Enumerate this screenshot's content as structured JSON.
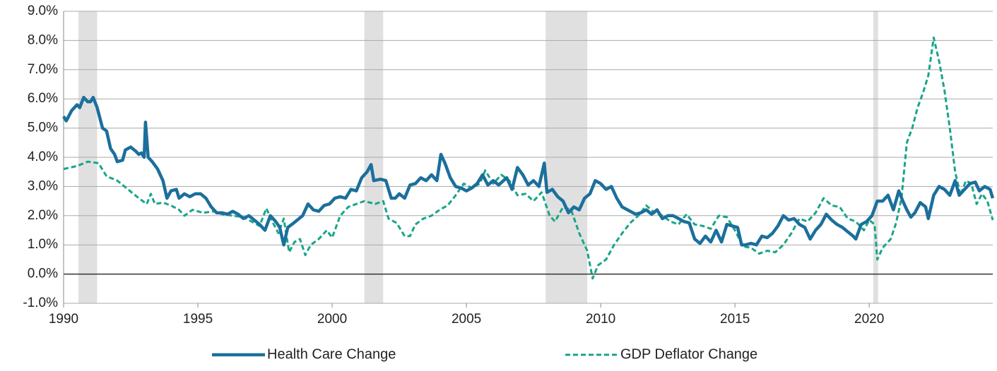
{
  "chart_data": {
    "type": "line",
    "xlim": [
      1990,
      2024.6
    ],
    "xticks": [
      1990,
      1995,
      2000,
      2005,
      2010,
      2015,
      2020
    ],
    "ylim": [
      -1,
      9
    ],
    "yticks": [
      {
        "value": 9,
        "label": "9.0%"
      },
      {
        "value": 8,
        "label": "8.0%"
      },
      {
        "value": 7,
        "label": "7.0%"
      },
      {
        "value": 6,
        "label": "6.0%"
      },
      {
        "value": 5,
        "label": "5.0%"
      },
      {
        "value": 4,
        "label": "4.0%"
      },
      {
        "value": 3,
        "label": "3.0%"
      },
      {
        "value": 2,
        "label": "2.0%"
      },
      {
        "value": 1,
        "label": "1.0%"
      },
      {
        "value": 0,
        "label": "0.0%"
      },
      {
        "value": -1,
        "label": "-1.0%"
      }
    ],
    "grid": true,
    "recession_bands": [
      [
        1990.55,
        1991.25
      ],
      [
        2001.2,
        2001.9
      ],
      [
        2007.95,
        2009.5
      ],
      [
        2020.15,
        2020.33
      ]
    ],
    "series": [
      {
        "name": "Health Care Change",
        "color": "#1b6f9c",
        "style": "solid",
        "x": [
          1990.0,
          1990.1,
          1990.3,
          1990.5,
          1990.6,
          1990.75,
          1990.9,
          1991.0,
          1991.1,
          1991.25,
          1991.45,
          1991.6,
          1991.75,
          1991.9,
          1992.0,
          1992.2,
          1992.3,
          1992.5,
          1992.7,
          1992.8,
          1992.9,
          1993.0,
          1993.05,
          1993.15,
          1993.3,
          1993.5,
          1993.7,
          1993.85,
          1994.0,
          1994.2,
          1994.3,
          1994.5,
          1994.7,
          1994.9,
          1995.1,
          1995.3,
          1995.5,
          1995.7,
          1995.9,
          1996.1,
          1996.3,
          1996.5,
          1996.7,
          1996.9,
          1997.1,
          1997.3,
          1997.5,
          1997.7,
          1997.9,
          1998.05,
          1998.2,
          1998.35,
          1998.5,
          1998.7,
          1998.9,
          1999.1,
          1999.3,
          1999.5,
          1999.7,
          1999.9,
          2000.1,
          2000.3,
          2000.5,
          2000.7,
          2000.9,
          2001.1,
          2001.3,
          2001.45,
          2001.55,
          2001.8,
          2002.0,
          2002.2,
          2002.35,
          2002.5,
          2002.7,
          2002.9,
          2003.1,
          2003.3,
          2003.5,
          2003.7,
          2003.9,
          2004.05,
          2004.2,
          2004.4,
          2004.6,
          2004.8,
          2005.0,
          2005.2,
          2005.4,
          2005.6,
          2005.8,
          2006.0,
          2006.2,
          2006.5,
          2006.7,
          2006.9,
          2007.1,
          2007.3,
          2007.5,
          2007.7,
          2007.9,
          2008.0,
          2008.2,
          2008.4,
          2008.6,
          2008.8,
          2009.0,
          2009.2,
          2009.4,
          2009.6,
          2009.8,
          2010.0,
          2010.2,
          2010.4,
          2010.6,
          2010.8,
          2011.0,
          2011.3,
          2011.5,
          2011.7,
          2011.9,
          2012.1,
          2012.3,
          2012.5,
          2012.7,
          2012.9,
          2013.1,
          2013.3,
          2013.5,
          2013.7,
          2013.9,
          2014.1,
          2014.3,
          2014.5,
          2014.7,
          2014.9,
          2015.1,
          2015.25,
          2015.4,
          2015.6,
          2015.8,
          2016.0,
          2016.2,
          2016.4,
          2016.6,
          2016.8,
          2017.0,
          2017.2,
          2017.4,
          2017.6,
          2017.8,
          2018.0,
          2018.2,
          2018.4,
          2018.6,
          2018.8,
          2019.0,
          2019.2,
          2019.4,
          2019.5,
          2019.7,
          2019.9,
          2020.1,
          2020.3,
          2020.5,
          2020.7,
          2020.9,
          2021.1,
          2021.25,
          2021.4,
          2021.55,
          2021.7,
          2021.9,
          2022.1,
          2022.2,
          2022.4,
          2022.6,
          2022.8,
          2023.0,
          2023.2,
          2023.35,
          2023.55,
          2023.75,
          2023.95,
          2024.1,
          2024.3,
          2024.5,
          2024.6
        ],
        "values": [
          5.4,
          5.25,
          5.6,
          5.8,
          5.7,
          6.05,
          5.9,
          5.9,
          6.05,
          5.7,
          5.0,
          4.9,
          4.3,
          4.1,
          3.85,
          3.9,
          4.25,
          4.35,
          4.2,
          4.1,
          4.15,
          4.0,
          5.2,
          4.0,
          3.85,
          3.6,
          3.2,
          2.6,
          2.85,
          2.9,
          2.6,
          2.75,
          2.65,
          2.75,
          2.75,
          2.6,
          2.3,
          2.1,
          2.1,
          2.05,
          2.15,
          2.05,
          1.9,
          2.0,
          1.85,
          1.7,
          1.5,
          2.0,
          1.8,
          1.6,
          1.0,
          1.6,
          1.7,
          1.85,
          2.0,
          2.4,
          2.2,
          2.15,
          2.35,
          2.4,
          2.6,
          2.65,
          2.6,
          2.9,
          2.85,
          3.3,
          3.5,
          3.75,
          3.2,
          3.25,
          3.2,
          2.6,
          2.6,
          2.75,
          2.6,
          3.05,
          3.1,
          3.3,
          3.2,
          3.4,
          3.2,
          4.1,
          3.8,
          3.3,
          3.0,
          2.95,
          2.85,
          2.95,
          3.1,
          3.4,
          3.05,
          3.2,
          3.05,
          3.3,
          2.9,
          3.65,
          3.4,
          3.05,
          3.2,
          3.0,
          3.8,
          2.8,
          2.9,
          2.65,
          2.5,
          2.1,
          2.3,
          2.2,
          2.6,
          2.75,
          3.2,
          3.1,
          2.9,
          3.0,
          2.6,
          2.3,
          2.2,
          2.05,
          2.1,
          2.2,
          2.05,
          2.2,
          1.9,
          2.0,
          2.0,
          1.9,
          1.8,
          1.75,
          1.2,
          1.05,
          1.3,
          1.1,
          1.5,
          1.1,
          1.7,
          1.65,
          1.6,
          1.0,
          1.0,
          1.05,
          1.0,
          1.3,
          1.25,
          1.4,
          1.65,
          2.0,
          1.85,
          1.9,
          1.7,
          1.6,
          1.2,
          1.5,
          1.7,
          2.05,
          1.85,
          1.7,
          1.6,
          1.45,
          1.3,
          1.2,
          1.7,
          1.8,
          2.0,
          2.5,
          2.5,
          2.7,
          2.2,
          2.85,
          2.5,
          2.2,
          1.95,
          2.1,
          2.45,
          2.3,
          1.9,
          2.7,
          3.0,
          2.9,
          2.7,
          3.2,
          2.7,
          2.9,
          3.1,
          3.15,
          2.85,
          3.0,
          2.9,
          2.6
        ]
      },
      {
        "name": "GDP Deflator Change",
        "color": "#17a589",
        "style": "dashed",
        "x": [
          1990.0,
          1990.5,
          1990.9,
          1991.3,
          1991.6,
          1992.0,
          1992.4,
          1992.8,
          1993.1,
          1993.25,
          1993.4,
          1993.7,
          1994.0,
          1994.3,
          1994.5,
          1994.8,
          1995.2,
          1995.6,
          1995.9,
          1996.3,
          1996.7,
          1997.0,
          1997.3,
          1997.55,
          1997.8,
          1998.0,
          1998.2,
          1998.4,
          1998.6,
          1998.8,
          1999.0,
          1999.2,
          1999.5,
          1999.8,
          2000.0,
          2000.3,
          2000.6,
          2000.9,
          2001.2,
          2001.6,
          2001.9,
          2002.1,
          2002.4,
          2002.7,
          2002.9,
          2003.1,
          2003.4,
          2003.7,
          2004.0,
          2004.3,
          2004.6,
          2004.9,
          2005.2,
          2005.5,
          2005.7,
          2006.0,
          2006.3,
          2006.6,
          2006.9,
          2007.2,
          2007.5,
          2007.8,
          2008.1,
          2008.3,
          2008.6,
          2008.9,
          2009.2,
          2009.5,
          2009.7,
          2009.9,
          2010.2,
          2010.5,
          2010.8,
          2011.1,
          2011.4,
          2011.7,
          2012.0,
          2012.3,
          2012.6,
          2012.9,
          2013.2,
          2013.5,
          2013.8,
          2014.1,
          2014.4,
          2014.7,
          2015.0,
          2015.3,
          2015.6,
          2015.9,
          2016.2,
          2016.5,
          2016.8,
          2017.1,
          2017.4,
          2017.7,
          2018.0,
          2018.3,
          2018.6,
          2018.9,
          2019.2,
          2019.5,
          2019.8,
          2020.0,
          2020.2,
          2020.3,
          2020.5,
          2020.8,
          2021.0,
          2021.2,
          2021.4,
          2021.6,
          2021.8,
          2022.0,
          2022.2,
          2022.4,
          2022.6,
          2022.8,
          2023.0,
          2023.2,
          2023.4,
          2023.6,
          2023.8,
          2024.0,
          2024.2,
          2024.4,
          2024.6
        ],
        "values": [
          3.6,
          3.7,
          3.85,
          3.8,
          3.35,
          3.2,
          2.9,
          2.6,
          2.4,
          2.75,
          2.4,
          2.45,
          2.35,
          2.2,
          2.0,
          2.2,
          2.1,
          2.15,
          2.05,
          2.0,
          1.95,
          1.8,
          1.65,
          2.25,
          1.75,
          1.4,
          1.9,
          0.75,
          1.1,
          1.2,
          0.65,
          1.0,
          1.2,
          1.5,
          1.25,
          2.0,
          2.3,
          2.4,
          2.5,
          2.4,
          2.5,
          1.9,
          1.75,
          1.3,
          1.3,
          1.7,
          1.9,
          2.0,
          2.2,
          2.35,
          2.7,
          3.1,
          2.95,
          3.1,
          3.55,
          3.1,
          3.4,
          3.2,
          2.7,
          2.75,
          2.5,
          2.8,
          2.0,
          1.8,
          2.3,
          2.2,
          1.4,
          0.8,
          -0.15,
          0.3,
          0.5,
          1.0,
          1.4,
          1.75,
          2.0,
          2.35,
          2.1,
          2.0,
          1.8,
          1.7,
          2.05,
          1.7,
          1.65,
          1.55,
          2.0,
          1.95,
          1.5,
          0.95,
          0.9,
          0.7,
          0.8,
          0.75,
          1.0,
          1.4,
          1.9,
          1.8,
          2.1,
          2.6,
          2.35,
          2.3,
          1.9,
          1.8,
          1.5,
          1.85,
          1.7,
          0.5,
          0.9,
          1.2,
          1.75,
          2.6,
          4.5,
          5.0,
          5.7,
          6.2,
          6.8,
          8.1,
          7.3,
          6.3,
          5.0,
          3.5,
          2.7,
          3.2,
          3.1,
          2.4,
          2.75,
          2.5,
          1.85
        ]
      }
    ]
  }
}
